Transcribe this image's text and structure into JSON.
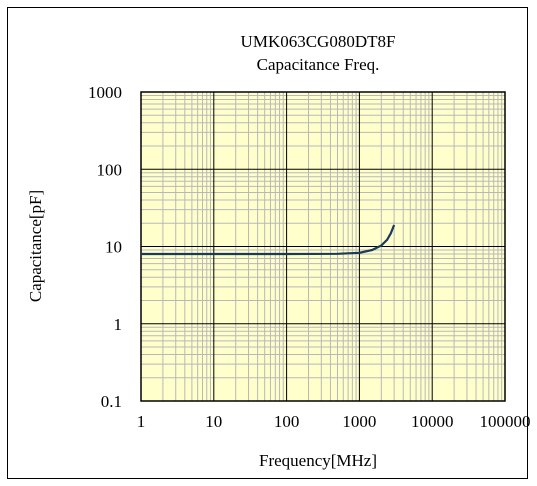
{
  "chart_data": {
    "type": "line",
    "title": "UMK063CG080DT8F",
    "subtitle": "Capacitance Freq.",
    "xlabel": "Frequency[MHz]",
    "ylabel": "Capacitance[pF]",
    "x_scale": "log",
    "y_scale": "log",
    "xlim": [
      1,
      100000
    ],
    "ylim": [
      0.1,
      1000
    ],
    "x_ticks": [
      "1",
      "10",
      "100",
      "1000",
      "10000",
      "100000"
    ],
    "y_ticks": [
      "0.1",
      "1",
      "10",
      "100",
      "1000"
    ],
    "grid": true,
    "series": [
      {
        "color": "#1a3a5c",
        "x": [
          1,
          10,
          100,
          500,
          1000,
          1500,
          2000,
          2400,
          2700,
          3000
        ],
        "y": [
          8.0,
          8.0,
          8.0,
          8.05,
          8.3,
          9.0,
          10.3,
          12.2,
          14.8,
          19.0
        ]
      }
    ]
  },
  "colors": {
    "plot_bg": "#ffffcc",
    "minor_grid": "#b8b8b8",
    "major_grid": "#000000",
    "line": "#1a3a5c"
  }
}
